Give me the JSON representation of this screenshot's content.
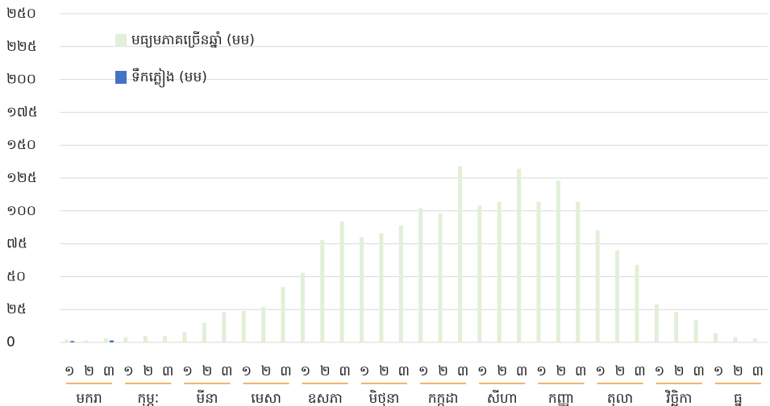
{
  "chart_data": {
    "type": "bar",
    "categories": [
      "១",
      "២",
      "៣",
      "១",
      "២",
      "៣",
      "១",
      "២",
      "៣",
      "១",
      "២",
      "៣",
      "១",
      "២",
      "៣",
      "១",
      "២",
      "៣",
      "១",
      "២",
      "៣",
      "១",
      "២",
      "៣",
      "១",
      "២",
      "៣",
      "១",
      "២",
      "៣",
      "១",
      "២",
      "៣",
      "១",
      "២",
      "៣"
    ],
    "month_groups": [
      "មករា",
      "កុម្ភៈ",
      "មីនា",
      "មេសា",
      "ឧសភា",
      "មិថុនា",
      "កក្កដា",
      "សីហា",
      "កញ្ញា",
      "តុលា",
      "វិច្ឆិកា",
      "ធ្នូ"
    ],
    "series": [
      {
        "name": "មធ្យមភាគច្រើនឆ្នាំ (មម)",
        "color": "#e2efd9",
        "values": [
          2,
          1.5,
          3,
          4,
          5,
          5,
          8,
          15,
          23,
          24,
          27,
          42,
          53,
          78,
          92,
          80,
          83,
          89,
          102,
          98,
          134,
          104,
          107,
          132,
          107,
          123,
          107,
          85,
          70,
          59,
          29,
          23,
          17,
          7,
          4,
          3
        ]
      },
      {
        "name": "ទឹកភ្លៀង (មម)",
        "color": "#4472c4",
        "values": [
          1,
          0,
          1.5,
          0,
          0,
          0,
          0,
          0,
          0,
          0,
          0,
          0,
          0,
          0,
          0,
          0,
          0,
          0,
          0,
          0,
          0,
          0,
          0,
          0,
          0,
          0,
          0,
          0,
          0,
          0,
          0,
          0,
          0,
          0,
          0,
          0
        ]
      }
    ],
    "ylim": [
      0,
      250
    ],
    "yticks": [
      0,
      {
        "value": 25,
        "label": "២៥"
      },
      {
        "value": 50,
        "label": "៥០"
      },
      {
        "value": 75,
        "label": "៧៥"
      },
      {
        "value": 100,
        "label": "១០០"
      },
      {
        "value": 125,
        "label": "១២៥"
      },
      {
        "value": 150,
        "label": "១៥០"
      },
      {
        "value": 175,
        "label": "១៧៥"
      },
      {
        "value": 200,
        "label": "២០០"
      },
      {
        "value": 225,
        "label": "២២៥"
      },
      {
        "value": 250,
        "label": "២៥០"
      }
    ],
    "grid": true
  }
}
